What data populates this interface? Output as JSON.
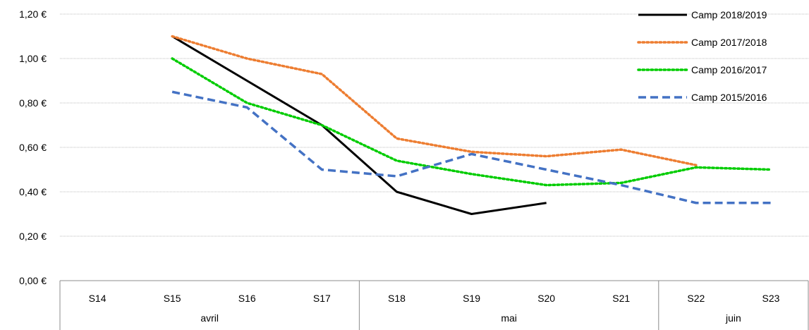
{
  "chart_data": {
    "type": "line",
    "title": "",
    "xlabel": "",
    "ylabel": "",
    "ylim": [
      0,
      1.2
    ],
    "yticks": [
      {
        "value": 0.0,
        "label": "0,00 €"
      },
      {
        "value": 0.2,
        "label": "0,20 €"
      },
      {
        "value": 0.4,
        "label": "0,40 €"
      },
      {
        "value": 0.6,
        "label": "0,60 €"
      },
      {
        "value": 0.8,
        "label": "0,80 €"
      },
      {
        "value": 1.0,
        "label": "1,00 €"
      },
      {
        "value": 1.2,
        "label": "1,20 €"
      }
    ],
    "categories": [
      "S14",
      "S15",
      "S16",
      "S17",
      "S18",
      "S19",
      "S20",
      "S21",
      "S22",
      "S23"
    ],
    "groups": [
      {
        "label": "avril",
        "start": 0,
        "end": 3
      },
      {
        "label": "mai",
        "start": 4,
        "end": 7
      },
      {
        "label": "juin",
        "start": 8,
        "end": 9
      }
    ],
    "grid": true,
    "legend_position": "top-right",
    "series": [
      {
        "name": "Camp 2018/2019",
        "color": "#000000",
        "style": "solid",
        "values": [
          null,
          1.1,
          0.9,
          0.7,
          0.4,
          0.3,
          0.35,
          null,
          null,
          null
        ]
      },
      {
        "name": "Camp 2017/2018",
        "color": "#ed7d31",
        "style": "dotted",
        "values": [
          null,
          1.1,
          1.0,
          0.93,
          0.64,
          0.58,
          0.56,
          0.59,
          0.52,
          null
        ]
      },
      {
        "name": "Camp 2016/2017",
        "color": "#00cc00",
        "style": "dotted",
        "values": [
          null,
          1.0,
          0.8,
          0.7,
          0.54,
          0.48,
          0.43,
          0.44,
          0.51,
          0.5
        ]
      },
      {
        "name": "Camp 2015/2016",
        "color": "#4472c4",
        "style": "dashed",
        "values": [
          null,
          0.85,
          0.78,
          0.5,
          0.47,
          0.57,
          0.5,
          0.43,
          0.35,
          0.35
        ]
      }
    ]
  }
}
